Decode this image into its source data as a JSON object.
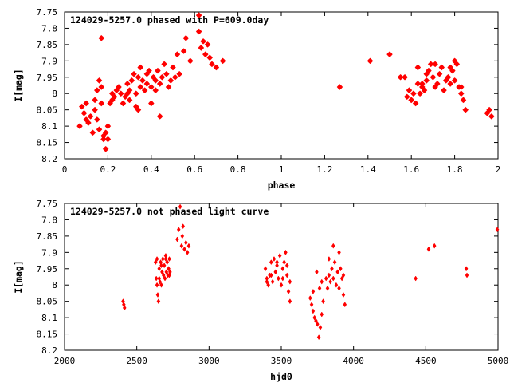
{
  "chart_data": [
    {
      "type": "scatter",
      "title": "124029-5257.0 phased with P=609.0day",
      "xlabel": "phase",
      "ylabel": "I[mag]",
      "xlim": [
        0,
        2
      ],
      "ylim": [
        8.2,
        7.75
      ],
      "y_inverted": true,
      "xticks": [
        0,
        0.2,
        0.4,
        0.6,
        0.8,
        1,
        1.2,
        1.4,
        1.6,
        1.8,
        2
      ],
      "yticks": [
        7.75,
        7.8,
        7.85,
        7.9,
        7.95,
        8,
        8.05,
        8.1,
        8.15,
        8.2
      ],
      "marker": "star",
      "color": "#ff0000",
      "grid": false,
      "series": [
        {
          "x": [
            0.07,
            0.08,
            0.09,
            0.1,
            0.1,
            0.11,
            0.12,
            0.13,
            0.14,
            0.14,
            0.15,
            0.15,
            0.16,
            0.16,
            0.17,
            0.17,
            0.18,
            0.18,
            0.19,
            0.19,
            0.2,
            0.2,
            0.21,
            0.22,
            0.22,
            0.23,
            0.24,
            0.25,
            0.26,
            0.27,
            0.28,
            0.29,
            0.3,
            0.3,
            0.31,
            0.32,
            0.33,
            0.33,
            0.34,
            0.35,
            0.35,
            0.36,
            0.37,
            0.38,
            0.38,
            0.39,
            0.4,
            0.41,
            0.42,
            0.42,
            0.43,
            0.44,
            0.45,
            0.46,
            0.47,
            0.48,
            0.49,
            0.5,
            0.51,
            0.52,
            0.53,
            0.55,
            0.56,
            0.58,
            0.62,
            0.63,
            0.64,
            0.65,
            0.66,
            0.67,
            0.68,
            0.7,
            0.73,
            0.17,
            0.44,
            0.62,
            0.4,
            0.34,
            0.29,
            1.27,
            1.41,
            1.5,
            1.55,
            1.57,
            1.58,
            1.59,
            1.6,
            1.61,
            1.62,
            1.63,
            1.64,
            1.65,
            1.66,
            1.67,
            1.68,
            1.69,
            1.7,
            1.71,
            1.72,
            1.73,
            1.74,
            1.75,
            1.76,
            1.77,
            1.78,
            1.79,
            1.8,
            1.81,
            1.82,
            1.83,
            1.84,
            1.85,
            1.95,
            1.96,
            1.97,
            1.63,
            1.67,
            1.71,
            1.78,
            1.8,
            1.83,
            1.6,
            1.65
          ],
          "y": [
            8.1,
            8.04,
            8.06,
            8.03,
            8.08,
            8.09,
            8.07,
            8.12,
            8.02,
            8.05,
            7.99,
            8.08,
            7.96,
            8.11,
            7.98,
            8.03,
            8.13,
            8.14,
            8.12,
            8.17,
            8.1,
            8.14,
            8.03,
            8.0,
            8.02,
            8.01,
            7.99,
            7.98,
            8.0,
            8.03,
            8.01,
            7.97,
            7.99,
            8.02,
            7.96,
            7.94,
            8.0,
            8.04,
            7.95,
            7.98,
            7.92,
            7.96,
            7.99,
            7.94,
            7.97,
            7.93,
            7.98,
            7.95,
            7.96,
            7.99,
            7.93,
            7.97,
            7.95,
            7.91,
            7.94,
            7.98,
            7.96,
            7.92,
            7.95,
            7.88,
            7.94,
            7.87,
            7.83,
            7.9,
            7.81,
            7.86,
            7.84,
            7.88,
            7.85,
            7.89,
            7.91,
            7.92,
            7.9,
            7.83,
            8.07,
            7.76,
            8.03,
            8.05,
            8.0,
            7.98,
            7.9,
            7.88,
            7.95,
            7.95,
            8.01,
            7.99,
            8.02,
            8.0,
            8.03,
            7.97,
            8.0,
            7.98,
            7.99,
            7.96,
            7.93,
            7.91,
            7.95,
            7.98,
            7.97,
            7.94,
            7.92,
            7.99,
            7.96,
            7.95,
            7.97,
            7.93,
            7.96,
            7.91,
            7.98,
            8.0,
            8.02,
            8.05,
            8.06,
            8.05,
            8.07,
            7.92,
            7.94,
            7.91,
            7.92,
            7.9,
            7.98,
            8.02,
            7.97
          ]
        }
      ]
    },
    {
      "type": "scatter",
      "title": "124029-5257.0 not phased light curve",
      "xlabel": "hjd0",
      "ylabel": "I[mag]",
      "xlim": [
        2000,
        5000
      ],
      "ylim": [
        8.2,
        7.75
      ],
      "y_inverted": true,
      "xticks": [
        2000,
        2500,
        3000,
        3500,
        4000,
        4500,
        5000
      ],
      "yticks": [
        7.75,
        7.8,
        7.85,
        7.9,
        7.95,
        8,
        8.05,
        8.1,
        8.15,
        8.2
      ],
      "marker": "diamond",
      "color": "#ff0000",
      "grid": false,
      "series": [
        {
          "x": [
            2405,
            2410,
            2415,
            2630,
            2635,
            2640,
            2645,
            2650,
            2655,
            2660,
            2665,
            2670,
            2675,
            2680,
            2685,
            2690,
            2695,
            2700,
            2705,
            2710,
            2715,
            2720,
            2725,
            2730,
            2640,
            2655,
            2670,
            2700,
            2725,
            2780,
            2790,
            2800,
            2810,
            2815,
            2820,
            2830,
            2840,
            2850,
            2860,
            3390,
            3400,
            3410,
            3420,
            3430,
            3440,
            3450,
            3460,
            3470,
            3480,
            3490,
            3500,
            3510,
            3520,
            3530,
            3540,
            3550,
            3560,
            3400,
            3430,
            3470,
            3510,
            3540,
            3560,
            3700,
            3710,
            3720,
            3730,
            3740,
            3750,
            3760,
            3770,
            3780,
            3790,
            3720,
            3745,
            3765,
            3780,
            3810,
            3820,
            3830,
            3840,
            3850,
            3860,
            3870,
            3880,
            3890,
            3900,
            3910,
            3920,
            3930,
            3940,
            3830,
            3860,
            3900,
            3930,
            4430,
            4520,
            4560,
            4780,
            4785,
            4995
          ],
          "y": [
            8.05,
            8.06,
            8.07,
            7.93,
            7.98,
            7.92,
            8.03,
            8.05,
            7.95,
            7.99,
            7.93,
            8.0,
            7.96,
            7.92,
            7.97,
            7.94,
            7.98,
            7.91,
            7.96,
            7.93,
            7.97,
            7.95,
            7.92,
            7.96,
            8.0,
            7.98,
            7.94,
            7.92,
            7.97,
            7.86,
            7.83,
            7.76,
            7.88,
            7.85,
            7.82,
            7.89,
            7.87,
            7.9,
            7.88,
            7.95,
            7.98,
            8.0,
            7.97,
            7.93,
            7.99,
            7.92,
            7.96,
            7.94,
            7.98,
            7.91,
            8.0,
            7.95,
            7.93,
            7.9,
            7.97,
            8.02,
            8.05,
            7.99,
            7.97,
            7.93,
            7.98,
            7.94,
            7.99,
            8.04,
            8.06,
            8.08,
            8.1,
            8.11,
            8.12,
            8.16,
            8.13,
            8.09,
            8.05,
            8.02,
            7.96,
            8.01,
            7.99,
            7.98,
            8.01,
            7.97,
            7.99,
            7.95,
            7.98,
            7.93,
            8.0,
            7.96,
            7.9,
            7.95,
            7.98,
            8.03,
            8.06,
            7.92,
            7.88,
            8.01,
            7.97,
            7.98,
            7.89,
            7.88,
            7.95,
            7.97,
            7.83
          ]
        }
      ]
    }
  ]
}
